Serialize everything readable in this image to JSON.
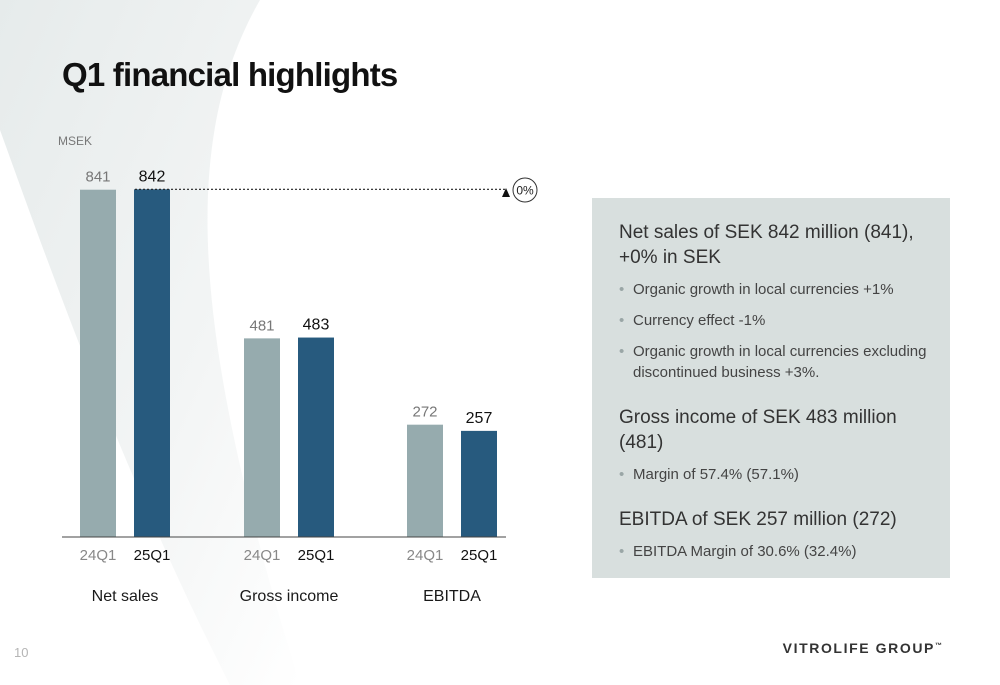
{
  "title": "Q1 financial highlights",
  "chart_data": {
    "type": "bar",
    "unit_label": "MSEK",
    "groups": [
      "Net sales",
      "Gross income",
      "EBITDA"
    ],
    "series": [
      {
        "name": "24Q1",
        "values": [
          841,
          481,
          272
        ],
        "color": "#96abae"
      },
      {
        "name": "25Q1",
        "values": [
          842,
          483,
          257
        ],
        "color": "#275a7e"
      }
    ],
    "ylim": [
      0,
      842
    ],
    "grid": false,
    "legend": "none",
    "annotation": {
      "text": "0%",
      "reference": "Net sales 24Q1 vs 25Q1"
    }
  },
  "panel": {
    "sections": [
      {
        "heading": "Net sales of SEK 842 million (841), +0% in SEK",
        "bullets": [
          "Organic growth in local currencies +1%",
          "Currency effect -1%",
          "Organic growth in local currencies excluding discontinued business +3%."
        ]
      },
      {
        "heading": "Gross income of SEK 483 million (481)",
        "bullets": [
          "Margin of 57.4% (57.1%)"
        ]
      },
      {
        "heading": "EBITDA of SEK 257 million (272)",
        "bullets": [
          "EBITDA Margin of 30.6% (32.4%)"
        ]
      }
    ]
  },
  "footer": {
    "page_number": "10",
    "logo_text": "VITROLIFE GROUP",
    "logo_tm": "™"
  },
  "colors": {
    "background_swoosh": "#eef1f1",
    "panel_bg": "#d8dfde",
    "bar_prior": "#96abae",
    "bar_current": "#275a7e"
  }
}
